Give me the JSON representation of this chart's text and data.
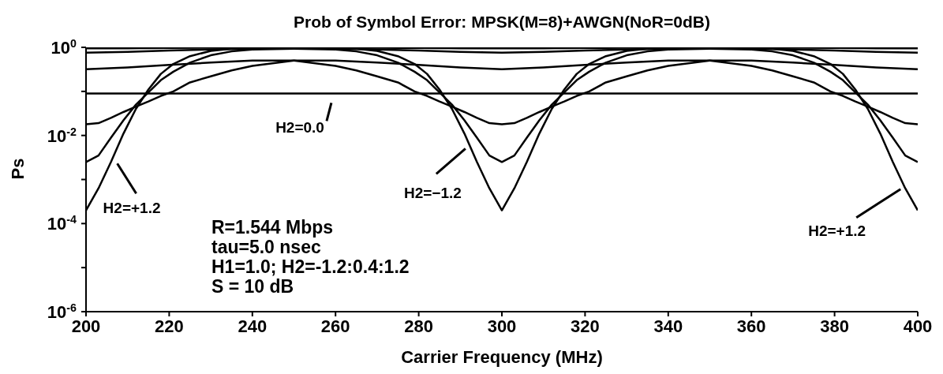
{
  "chart_data": {
    "type": "line",
    "title": "Prob of Symbol Error: MPSK(M=8)+AWGN(NoR=0dB)",
    "xlabel": "Carrier Frequency (MHz)",
    "ylabel": "Ps",
    "log": "y",
    "marker": "none",
    "line_style": "solid",
    "xlim": [
      200,
      400
    ],
    "xticks": [
      200,
      220,
      240,
      260,
      280,
      300,
      320,
      340,
      360,
      380,
      400
    ],
    "ylim": [
      1e-06,
      1
    ],
    "yticks": [
      {
        "value": 1,
        "label": "10$^{0}$"
      },
      {
        "value": 0.1,
        "label": null
      },
      {
        "value": 0.01,
        "label": "10$^{-2}$"
      },
      {
        "value": 0.001,
        "label": null
      },
      {
        "value": 0.0001,
        "label": "10$^{-4}$"
      },
      {
        "value": 1e-05,
        "label": null
      },
      {
        "value": 1e-06,
        "label": "10$^{-6}$"
      }
    ],
    "series": [
      {
        "color": "#000000",
        "x": [
          200,
          203,
          206,
          209,
          212,
          215,
          218,
          221,
          225,
          230,
          235,
          240,
          250,
          260,
          270,
          280,
          290,
          300,
          310,
          320,
          330,
          340,
          350,
          360,
          365,
          370,
          375,
          379,
          382,
          385,
          388,
          391,
          394,
          397,
          400
        ],
        "values": [
          0.0002,
          0.00063,
          0.0025,
          0.011,
          0.04,
          0.11,
          0.25,
          0.42,
          0.63,
          0.83,
          0.93,
          0.95,
          0.98,
          0.98,
          0.98,
          0.97,
          0.95,
          0.95,
          0.95,
          0.97,
          0.98,
          0.98,
          0.98,
          0.95,
          0.93,
          0.83,
          0.63,
          0.42,
          0.25,
          0.11,
          0.04,
          0.011,
          0.0025,
          0.00063,
          0.0002
        ]
      },
      {
        "color": "#000000",
        "x": [
          200,
          203,
          206,
          209,
          212,
          215,
          218,
          221,
          225,
          230,
          235,
          240,
          250,
          260,
          270,
          280,
          290,
          300,
          310,
          320,
          330,
          340,
          350,
          360,
          365,
          370,
          375,
          379,
          382,
          385,
          388,
          391,
          394,
          397,
          400
        ],
        "values": [
          0.0025,
          0.0035,
          0.0089,
          0.022,
          0.05,
          0.095,
          0.18,
          0.28,
          0.45,
          0.66,
          0.81,
          0.89,
          0.93,
          0.93,
          0.89,
          0.85,
          0.79,
          0.76,
          0.79,
          0.85,
          0.89,
          0.93,
          0.93,
          0.89,
          0.81,
          0.66,
          0.45,
          0.28,
          0.18,
          0.095,
          0.05,
          0.022,
          0.0089,
          0.0035,
          0.0025
        ]
      },
      {
        "color": "#000000",
        "x": [
          200,
          203,
          206,
          209,
          212,
          215,
          218,
          221,
          225,
          230,
          235,
          240,
          250,
          260,
          270,
          280,
          290,
          300,
          310,
          320,
          330,
          340,
          350,
          360,
          365,
          370,
          375,
          379,
          382,
          385,
          388,
          391,
          394,
          397,
          400
        ],
        "values": [
          0.018,
          0.019,
          0.025,
          0.034,
          0.045,
          0.059,
          0.079,
          0.1,
          0.16,
          0.22,
          0.3,
          0.38,
          0.5,
          0.5,
          0.45,
          0.4,
          0.35,
          0.32,
          0.35,
          0.4,
          0.45,
          0.5,
          0.5,
          0.38,
          0.3,
          0.22,
          0.16,
          0.1,
          0.079,
          0.059,
          0.045,
          0.034,
          0.025,
          0.019,
          0.018
        ]
      },
      {
        "color": "#000000",
        "x": [
          200,
          400
        ],
        "values": [
          0.09,
          0.09
        ]
      },
      {
        "color": "#000000",
        "x": [
          200,
          210,
          220,
          230,
          240,
          250,
          260,
          265,
          270,
          275,
          279,
          282,
          285,
          288,
          291,
          294,
          297,
          300,
          303,
          306,
          309,
          312,
          315,
          318,
          321,
          325,
          330,
          335,
          340,
          350,
          360,
          370,
          380,
          390,
          400
        ],
        "values": [
          0.32,
          0.35,
          0.4,
          0.45,
          0.5,
          0.5,
          0.38,
          0.3,
          0.22,
          0.16,
          0.1,
          0.079,
          0.059,
          0.045,
          0.034,
          0.025,
          0.019,
          0.018,
          0.019,
          0.025,
          0.034,
          0.045,
          0.059,
          0.079,
          0.1,
          0.16,
          0.22,
          0.3,
          0.38,
          0.5,
          0.5,
          0.45,
          0.4,
          0.35,
          0.32
        ]
      },
      {
        "color": "#000000",
        "x": [
          200,
          210,
          220,
          230,
          240,
          250,
          260,
          265,
          270,
          275,
          279,
          282,
          285,
          288,
          291,
          294,
          297,
          300,
          303,
          306,
          309,
          312,
          315,
          318,
          321,
          325,
          330,
          335,
          340,
          350,
          360,
          370,
          380,
          390,
          400
        ],
        "values": [
          0.76,
          0.79,
          0.85,
          0.89,
          0.93,
          0.93,
          0.89,
          0.81,
          0.66,
          0.45,
          0.28,
          0.18,
          0.095,
          0.05,
          0.022,
          0.0089,
          0.0035,
          0.0025,
          0.0035,
          0.0089,
          0.022,
          0.05,
          0.095,
          0.18,
          0.28,
          0.45,
          0.66,
          0.81,
          0.89,
          0.93,
          0.93,
          0.89,
          0.85,
          0.79,
          0.76
        ]
      },
      {
        "color": "#000000",
        "x": [
          200,
          210,
          220,
          230,
          240,
          250,
          260,
          265,
          270,
          275,
          279,
          282,
          285,
          288,
          291,
          294,
          297,
          300,
          303,
          306,
          309,
          312,
          315,
          318,
          321,
          325,
          330,
          335,
          340,
          350,
          360,
          370,
          380,
          390,
          400
        ],
        "values": [
          0.95,
          0.95,
          0.97,
          0.98,
          0.98,
          0.98,
          0.95,
          0.93,
          0.83,
          0.63,
          0.42,
          0.25,
          0.11,
          0.04,
          0.011,
          0.0025,
          0.00063,
          0.0002,
          0.00063,
          0.0025,
          0.011,
          0.04,
          0.11,
          0.25,
          0.42,
          0.63,
          0.83,
          0.93,
          0.95,
          0.98,
          0.98,
          0.98,
          0.97,
          0.95,
          0.95
        ]
      }
    ],
    "annotations": [
      {
        "text": "H2=0.0",
        "x": 259,
        "y": 0.09
      },
      {
        "text": "H2=+1.2",
        "x": 206,
        "y": 0.0025
      },
      {
        "text": "H2=−1.2",
        "x": 292,
        "y": 0.005
      },
      {
        "text": "H2=+1.2",
        "x": 397,
        "y": 0.00063
      },
      "R=1.544 Mbps",
      "tau=5.0 nsec",
      "H1=1.0; H2=-1.2:0.4:1.2",
      "S = 10 dB"
    ]
  }
}
